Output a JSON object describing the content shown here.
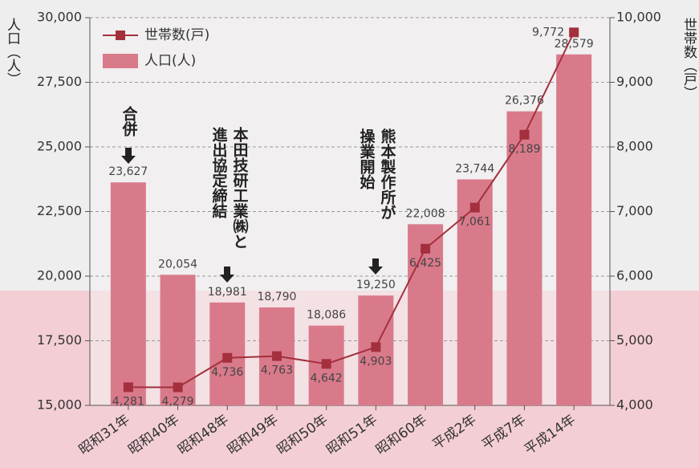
{
  "chart_data": {
    "type": "bar_line",
    "y_label": "人口（人）",
    "y2_label": "世帯数（戸）",
    "categories": [
      "昭和31年",
      "昭和40年",
      "昭和48年",
      "昭和49年",
      "昭和50年",
      "昭和51年",
      "昭和60年",
      "平成2年",
      "平成7年",
      "平成14年"
    ],
    "series": [
      {
        "name": "人口(人)",
        "type": "bar",
        "color": "#d97a8b",
        "values": [
          23627,
          20054,
          18981,
          18790,
          18086,
          19250,
          22008,
          23744,
          26376,
          28579
        ],
        "value_labels": [
          "23,627",
          "20,054",
          "18,981",
          "18,790",
          "18,086",
          "19,250",
          "22,008",
          "23,744",
          "26,376",
          "28,579"
        ]
      },
      {
        "name": "世帯数(戸)",
        "type": "line",
        "axis": "y2",
        "color": "#a3303c",
        "values": [
          4281,
          4279,
          4736,
          4763,
          4642,
          4903,
          6425,
          7061,
          8189,
          9772
        ],
        "value_labels": [
          "4,281",
          "4,279",
          "4,736",
          "4,763",
          "4,642",
          "4,903",
          "6,425",
          "7,061",
          "8,189",
          "9,772"
        ]
      }
    ],
    "ylim": [
      15000,
      30000
    ],
    "yticks": [
      {
        "value": 15000,
        "label": "15,000"
      },
      {
        "value": 17500,
        "label": "17,500"
      },
      {
        "value": 20000,
        "label": "20,000"
      },
      {
        "value": 22500,
        "label": "22,500"
      },
      {
        "value": 25000,
        "label": "25,000"
      },
      {
        "value": 27500,
        "label": "27,500"
      },
      {
        "value": 30000,
        "label": "30,000"
      }
    ],
    "y2lim": [
      4000,
      10000
    ],
    "y2ticks": [
      {
        "value": 4000,
        "label": "4,000"
      },
      {
        "value": 5000,
        "label": "5,000"
      },
      {
        "value": 6000,
        "label": "6,000"
      },
      {
        "value": 7000,
        "label": "7,000"
      },
      {
        "value": 8000,
        "label": "8,000"
      },
      {
        "value": 9000,
        "label": "9,000"
      },
      {
        "value": 10000,
        "label": "10,000"
      }
    ],
    "grid": true,
    "legend": "top-left",
    "annotations": [
      {
        "lines": [
          "合併"
        ]
      },
      {
        "lines": [
          "本田技研工業㈱と",
          "進出協定締結"
        ]
      },
      {
        "lines": [
          "熊本製作所が",
          "操業開始"
        ]
      }
    ]
  }
}
